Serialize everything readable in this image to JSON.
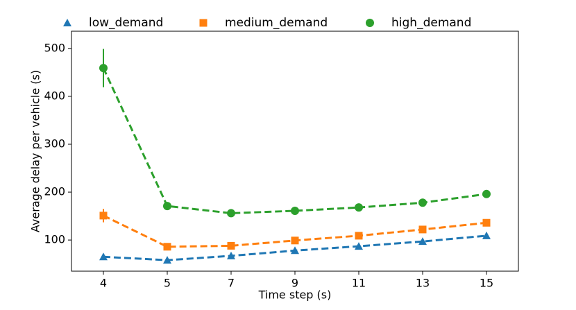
{
  "chart_data": {
    "type": "line",
    "xlabel": "Time step (s)",
    "ylabel": "Average delay per vehicle (s)",
    "categories": [
      "4",
      "5",
      "7",
      "9",
      "11",
      "13",
      "15"
    ],
    "ylim": [
      35,
      536
    ],
    "yticks": [
      100,
      200,
      300,
      400,
      500
    ],
    "series": [
      {
        "name": "low_demand",
        "color": "#1f77b4",
        "marker": "triangle",
        "values": [
          65,
          58,
          67,
          78,
          87,
          97,
          109
        ],
        "errors": [
          null,
          null,
          null,
          null,
          null,
          null,
          null
        ]
      },
      {
        "name": "medium_demand",
        "color": "#ff7f0e",
        "marker": "square",
        "values": [
          151,
          86,
          88,
          99,
          109,
          122,
          136
        ],
        "errors": [
          14,
          null,
          null,
          null,
          null,
          null,
          null
        ]
      },
      {
        "name": "high_demand",
        "color": "#2ca02c",
        "marker": "circle",
        "values": [
          459,
          171,
          156,
          161,
          168,
          178,
          196
        ],
        "errors": [
          40,
          null,
          null,
          null,
          null,
          null,
          null
        ]
      }
    ]
  }
}
